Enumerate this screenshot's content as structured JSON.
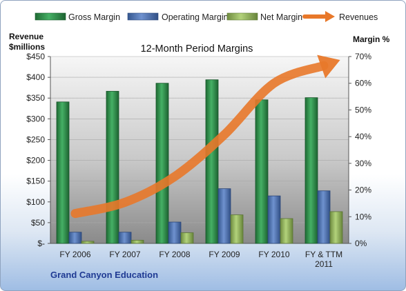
{
  "chart_data": {
    "type": "bar",
    "title": "12-Month Period Margins",
    "subtitle_label": "Grand Canyon Education",
    "ylabel_left": [
      "Revenue",
      "$millions"
    ],
    "ylabel_right": "Margin %",
    "categories": [
      [
        "FY 2006"
      ],
      [
        "FY 2007"
      ],
      [
        "FY 2008"
      ],
      [
        "FY 2009"
      ],
      [
        "FY 2010"
      ],
      [
        "FY & TTM",
        "2011"
      ]
    ],
    "left_axis": {
      "ylim": [
        0,
        450
      ],
      "ticks": [
        "$-",
        "$50",
        "$100",
        "$150",
        "$200",
        "$250",
        "$300",
        "$350",
        "$400",
        "$450"
      ]
    },
    "right_axis": {
      "ylim": [
        0,
        70
      ],
      "ticks": [
        "0%",
        "10%",
        "20%",
        "30%",
        "40%",
        "50%",
        "60%",
        "70%"
      ]
    },
    "legend_position": "top",
    "series": [
      {
        "name": "Gross Margin",
        "axis": "right",
        "type": "bar",
        "color": "#2e8b47",
        "values": [
          53,
          57,
          60,
          61.3,
          53.8,
          54.6
        ]
      },
      {
        "name": "Operating Margin",
        "axis": "right",
        "type": "bar",
        "color": "#4a6fb0",
        "values": [
          4.2,
          4.2,
          8,
          20.5,
          17.8,
          19.7
        ]
      },
      {
        "name": "Net Margin",
        "axis": "right",
        "type": "bar",
        "color": "#8fb45c",
        "values": [
          0.8,
          1.2,
          4,
          10.7,
          9.3,
          11.9
        ]
      },
      {
        "name": "Revenues",
        "axis": "left",
        "type": "line",
        "color": "#e8782a",
        "values": [
          72,
          99,
          161,
          262,
          386,
          428
        ]
      }
    ]
  }
}
